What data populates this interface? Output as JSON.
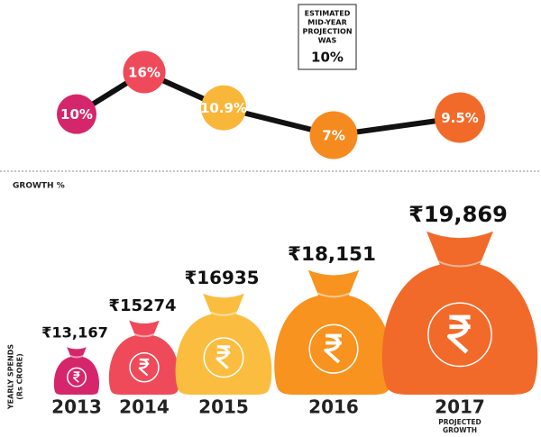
{
  "chart_data": [
    {
      "type": "line",
      "categories": [
        "2013",
        "2014",
        "2015",
        "2016",
        "2017"
      ],
      "values": [
        10,
        16,
        10.9,
        7,
        9.5
      ],
      "value_labels": [
        "10%",
        "16%",
        "10.9%",
        "7%",
        "9.5%"
      ],
      "colors": [
        "#d6266b",
        "#ef4a5a",
        "#f9b73a",
        "#f58a1f",
        "#f26a2a"
      ],
      "line_color": "#111111",
      "axis_label": "GROWTH %",
      "annotation_lines": [
        "ESTIMATED",
        "MID-YEAR",
        "PROJECTION",
        "WAS"
      ],
      "annotation_value": "10%"
    },
    {
      "type": "bag",
      "categories": [
        "2013",
        "2014",
        "2015",
        "2016",
        "2017"
      ],
      "values": [
        13167,
        15274,
        16935,
        18151,
        19869
      ],
      "value_labels": [
        "₹13,167",
        "₹15274",
        "₹16935",
        "₹18,151",
        "₹19,869"
      ],
      "colors": [
        "#d6266b",
        "#ef4a5a",
        "#fbbd3f",
        "#f7931e",
        "#f26a2a"
      ],
      "axis_label": [
        "YEARLY SPENDS",
        "(Rs CRORE)"
      ],
      "note": [
        "PROJECTED",
        "GROWTH"
      ]
    }
  ]
}
